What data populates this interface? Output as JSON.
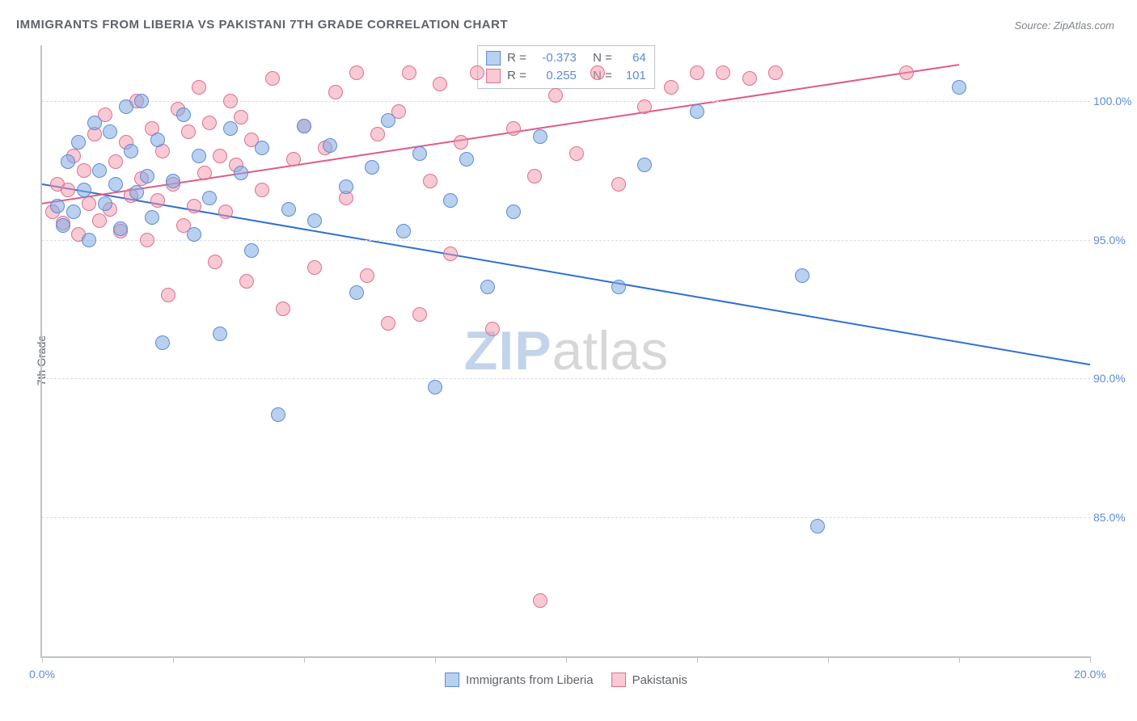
{
  "title": "IMMIGRANTS FROM LIBERIA VS PAKISTANI 7TH GRADE CORRELATION CHART",
  "source": "Source: ZipAtlas.com",
  "ylabel": "7th Grade",
  "watermark": {
    "part1": "ZIP",
    "part2": "atlas"
  },
  "chart": {
    "type": "scatter",
    "background_color": "#ffffff",
    "grid_color": "#d9dcdf",
    "axis_color": "#bfc3c7",
    "tick_label_color": "#5b8dd6",
    "text_color": "#5f6368",
    "marker_radius": 9,
    "marker_border_width": 1.5,
    "trend_line_width": 2,
    "xlim": [
      0,
      20
    ],
    "ylim": [
      80,
      102
    ],
    "x_ticks": [
      0,
      2.5,
      5,
      7.5,
      10,
      12.5,
      15,
      17.5,
      20
    ],
    "x_tick_labels": {
      "0": "0.0%",
      "20": "20.0%"
    },
    "y_ticks": [
      85,
      90,
      95,
      100
    ],
    "y_tick_labels": {
      "85": "85.0%",
      "90": "90.0%",
      "95": "95.0%",
      "100": "100.0%"
    },
    "series": [
      {
        "id": "liberia",
        "label": "Immigrants from Liberia",
        "fill_color": "rgba(130,170,225,0.55)",
        "stroke_color": "#5b8dd6",
        "trend_color": "#2f6fd0",
        "R": "-0.373",
        "N": "64",
        "trend": {
          "x1": 0,
          "y1": 97.0,
          "x2": 20,
          "y2": 90.5
        },
        "points": [
          [
            0.3,
            96.2
          ],
          [
            0.4,
            95.5
          ],
          [
            0.5,
            97.8
          ],
          [
            0.6,
            96.0
          ],
          [
            0.7,
            98.5
          ],
          [
            0.8,
            96.8
          ],
          [
            0.9,
            95.0
          ],
          [
            1.0,
            99.2
          ],
          [
            1.1,
            97.5
          ],
          [
            1.2,
            96.3
          ],
          [
            1.3,
            98.9
          ],
          [
            1.4,
            97.0
          ],
          [
            1.5,
            95.4
          ],
          [
            1.6,
            99.8
          ],
          [
            1.7,
            98.2
          ],
          [
            1.8,
            96.7
          ],
          [
            1.9,
            100.0
          ],
          [
            2.0,
            97.3
          ],
          [
            2.1,
            95.8
          ],
          [
            2.2,
            98.6
          ],
          [
            2.3,
            91.3
          ],
          [
            2.5,
            97.1
          ],
          [
            2.7,
            99.5
          ],
          [
            2.9,
            95.2
          ],
          [
            3.0,
            98.0
          ],
          [
            3.2,
            96.5
          ],
          [
            3.4,
            91.6
          ],
          [
            3.6,
            99.0
          ],
          [
            3.8,
            97.4
          ],
          [
            4.0,
            94.6
          ],
          [
            4.2,
            98.3
          ],
          [
            4.5,
            88.7
          ],
          [
            4.7,
            96.1
          ],
          [
            5.0,
            99.1
          ],
          [
            5.2,
            95.7
          ],
          [
            5.5,
            98.4
          ],
          [
            5.8,
            96.9
          ],
          [
            6.0,
            93.1
          ],
          [
            6.3,
            97.6
          ],
          [
            6.6,
            99.3
          ],
          [
            6.9,
            95.3
          ],
          [
            7.2,
            98.1
          ],
          [
            7.5,
            89.7
          ],
          [
            7.8,
            96.4
          ],
          [
            8.1,
            97.9
          ],
          [
            8.5,
            93.3
          ],
          [
            9.0,
            96.0
          ],
          [
            9.5,
            98.7
          ],
          [
            11.0,
            93.3
          ],
          [
            11.5,
            97.7
          ],
          [
            12.5,
            99.6
          ],
          [
            14.5,
            93.7
          ],
          [
            14.8,
            84.7
          ],
          [
            17.5,
            100.5
          ]
        ]
      },
      {
        "id": "pakistani",
        "label": "Pakistanis",
        "fill_color": "rgba(240,150,170,0.50)",
        "stroke_color": "#e06f8f",
        "trend_color": "#e05a85",
        "R": "0.255",
        "N": "101",
        "trend": {
          "x1": 0,
          "y1": 96.3,
          "x2": 17.5,
          "y2": 101.3
        },
        "points": [
          [
            0.2,
            96.0
          ],
          [
            0.3,
            97.0
          ],
          [
            0.4,
            95.6
          ],
          [
            0.5,
            96.8
          ],
          [
            0.6,
            98.0
          ],
          [
            0.7,
            95.2
          ],
          [
            0.8,
            97.5
          ],
          [
            0.9,
            96.3
          ],
          [
            1.0,
            98.8
          ],
          [
            1.1,
            95.7
          ],
          [
            1.2,
            99.5
          ],
          [
            1.3,
            96.1
          ],
          [
            1.4,
            97.8
          ],
          [
            1.5,
            95.3
          ],
          [
            1.6,
            98.5
          ],
          [
            1.7,
            96.6
          ],
          [
            1.8,
            100.0
          ],
          [
            1.9,
            97.2
          ],
          [
            2.0,
            95.0
          ],
          [
            2.1,
            99.0
          ],
          [
            2.2,
            96.4
          ],
          [
            2.3,
            98.2
          ],
          [
            2.4,
            93.0
          ],
          [
            2.5,
            97.0
          ],
          [
            2.6,
            99.7
          ],
          [
            2.7,
            95.5
          ],
          [
            2.8,
            98.9
          ],
          [
            2.9,
            96.2
          ],
          [
            3.0,
            100.5
          ],
          [
            3.1,
            97.4
          ],
          [
            3.2,
            99.2
          ],
          [
            3.3,
            94.2
          ],
          [
            3.4,
            98.0
          ],
          [
            3.5,
            96.0
          ],
          [
            3.6,
            100.0
          ],
          [
            3.7,
            97.7
          ],
          [
            3.8,
            99.4
          ],
          [
            3.9,
            93.5
          ],
          [
            4.0,
            98.6
          ],
          [
            4.2,
            96.8
          ],
          [
            4.4,
            100.8
          ],
          [
            4.6,
            92.5
          ],
          [
            4.8,
            97.9
          ],
          [
            5.0,
            99.1
          ],
          [
            5.2,
            94.0
          ],
          [
            5.4,
            98.3
          ],
          [
            5.6,
            100.3
          ],
          [
            5.8,
            96.5
          ],
          [
            6.0,
            101.0
          ],
          [
            6.2,
            93.7
          ],
          [
            6.4,
            98.8
          ],
          [
            6.6,
            92.0
          ],
          [
            6.8,
            99.6
          ],
          [
            7.0,
            101.0
          ],
          [
            7.2,
            92.3
          ],
          [
            7.4,
            97.1
          ],
          [
            7.6,
            100.6
          ],
          [
            7.8,
            94.5
          ],
          [
            8.0,
            98.5
          ],
          [
            8.3,
            101.0
          ],
          [
            8.6,
            91.8
          ],
          [
            9.0,
            99.0
          ],
          [
            9.4,
            97.3
          ],
          [
            9.5,
            82.0
          ],
          [
            9.8,
            100.2
          ],
          [
            10.2,
            98.1
          ],
          [
            10.6,
            101.0
          ],
          [
            11.0,
            97.0
          ],
          [
            11.5,
            99.8
          ],
          [
            12.0,
            100.5
          ],
          [
            12.5,
            101.0
          ],
          [
            13.0,
            101.0
          ],
          [
            13.5,
            100.8
          ],
          [
            14.0,
            101.0
          ],
          [
            16.5,
            101.0
          ]
        ]
      }
    ]
  },
  "legend_top": {
    "r_label": "R =",
    "n_label": "N ="
  }
}
